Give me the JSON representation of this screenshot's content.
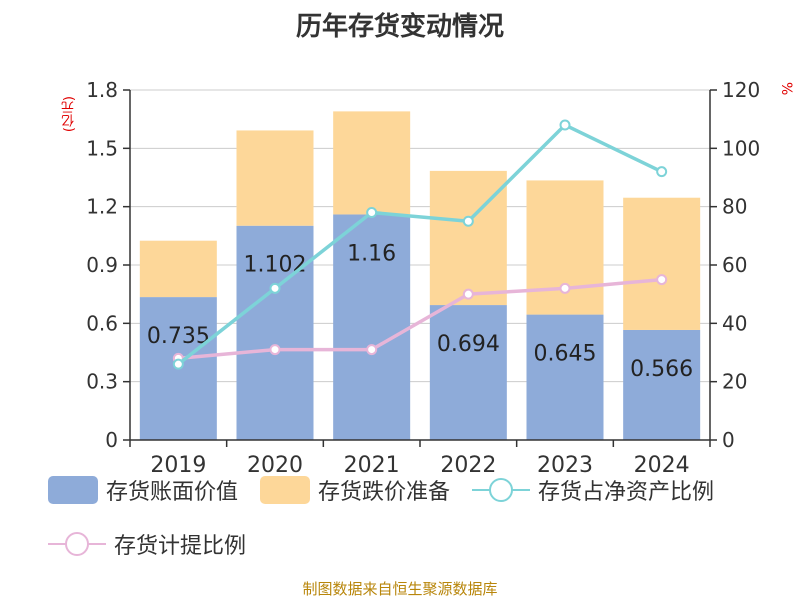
{
  "title": "历年存货变动情况",
  "left_unit": "(亿元)",
  "right_unit": "%",
  "source": "制图数据来自恒生聚源数据库",
  "colors": {
    "book_value": "#8eabd9",
    "impairment": "#fdd799",
    "net_asset_ratio": "#7dd3d8",
    "provision_ratio": "#e7b5d8",
    "axis": "#333333",
    "grid": "#cccccc"
  },
  "chart_data": {
    "type": "bar",
    "categories": [
      "2019",
      "2020",
      "2021",
      "2022",
      "2023",
      "2024"
    ],
    "left_axis": {
      "min": 0,
      "max": 1.8,
      "ticks": [
        0,
        0.3,
        0.6,
        0.9,
        1.2,
        1.5,
        1.8
      ],
      "tick_labels": [
        "0",
        "0.3",
        "0.6",
        "0.9",
        "1.2",
        "1.5",
        "1.8"
      ]
    },
    "right_axis": {
      "min": 0,
      "max": 120,
      "ticks": [
        0,
        20,
        40,
        60,
        80,
        100,
        120
      ],
      "tick_labels": [
        "0",
        "20",
        "40",
        "60",
        "80",
        "100",
        "120"
      ]
    },
    "grid": true,
    "legend_position": "bottom",
    "series": [
      {
        "name": "存货账面价值",
        "type": "bar",
        "stack": "inv",
        "axis": "left",
        "values": [
          0.735,
          1.102,
          1.16,
          0.694,
          0.645,
          0.566
        ],
        "data_labels": [
          "0.735",
          "1.102",
          "1.16",
          "0.694",
          "0.645",
          "0.566"
        ]
      },
      {
        "name": "存货跌价准备",
        "type": "bar",
        "stack": "inv",
        "axis": "left",
        "values": [
          0.29,
          0.49,
          0.53,
          0.69,
          0.69,
          0.68
        ]
      },
      {
        "name": "存货占净资产比例",
        "type": "line",
        "axis": "right",
        "values": [
          26,
          52,
          78,
          75,
          108,
          92
        ]
      },
      {
        "name": "存货计提比例",
        "type": "line",
        "axis": "right",
        "values": [
          28,
          31,
          31,
          50,
          52,
          55
        ]
      }
    ]
  }
}
